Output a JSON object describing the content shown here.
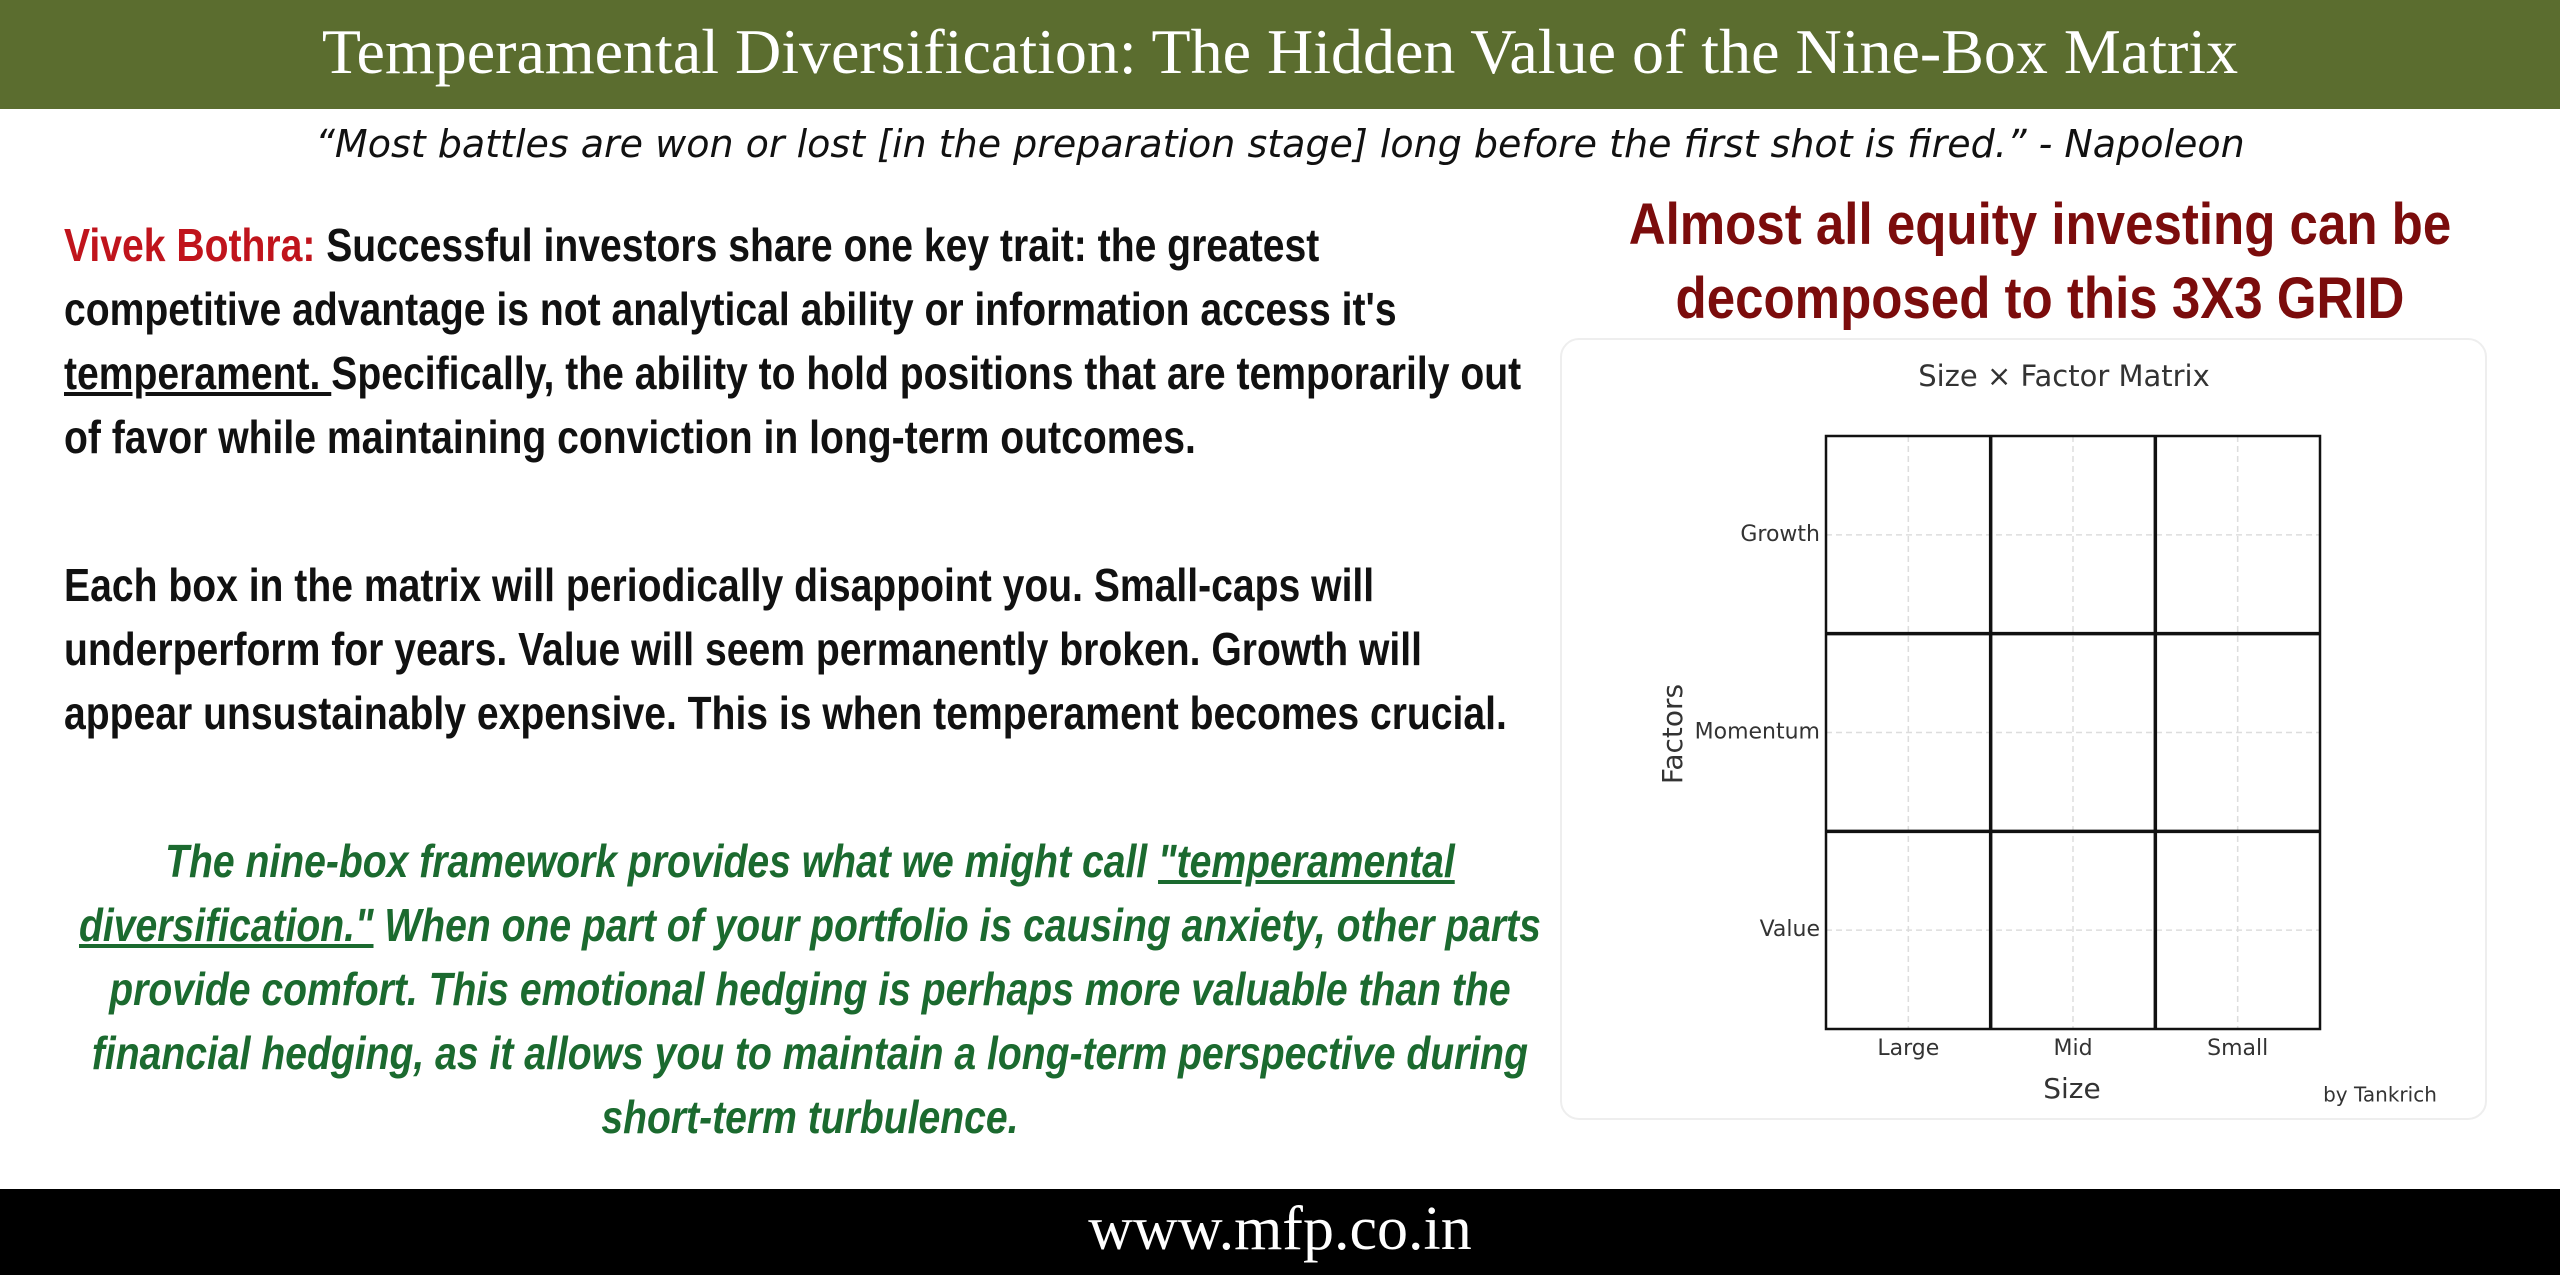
{
  "header": {
    "title": "Temperamental Diversification: The Hidden Value of the Nine-Box Matrix",
    "quote": "“Most battles are won or lost [in the preparation stage] long before the first shot is fired.” - Napoleon"
  },
  "body": {
    "paragraphs": [
      {
        "speaker": "Vivek Bothra:",
        "text_before": " Successful investors share one key trait: the greatest competitive advantage is not analytical ability or information access it's ",
        "underlined": "temperament. ",
        "text_after": "Specifically, the ability to hold positions that are temporarily out of favor while maintaining conviction in long-term outcomes."
      },
      {
        "text": "Each box in the matrix will periodically disappoint you. Small-caps will underperform for years. Value will seem permanently broken. Growth will appear unsustainably expensive. This is when temperament becomes crucial."
      },
      {
        "text_before": "The nine-box framework provides what we might call ",
        "underlined": "\"temperamental diversification.\"",
        "text_after": " When one part of your portfolio is causing anxiety, other parts provide comfort. This emotional hedging is perhaps more valuable than the financial hedging, as it allows you to maintain a long-term perspective during short-term turbulence."
      }
    ]
  },
  "side": {
    "heading_lines": [
      "Almost all equity investing can be",
      "decomposed to this 3X3 GRID"
    ]
  },
  "chart": {
    "title": "Size × Factor Matrix",
    "x_label": "Size",
    "y_label": "Factors",
    "x_categories": [
      "Large",
      "Mid",
      "Small"
    ],
    "y_categories": [
      "Growth",
      "Momentum",
      "Value"
    ],
    "credit": "by Tankrich"
  },
  "footer": {
    "url": "www.mfp.co.in"
  }
}
